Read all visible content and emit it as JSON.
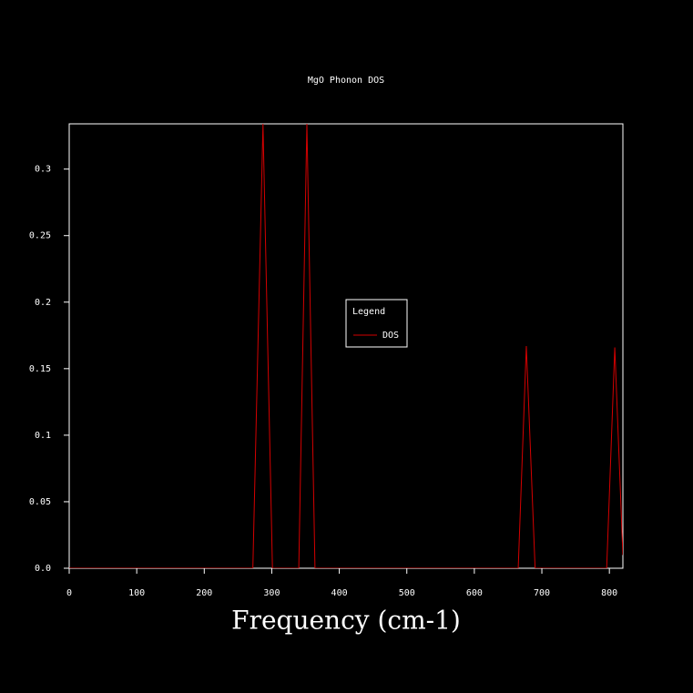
{
  "chart_data": {
    "type": "line",
    "title": "MgO Phonon DOS",
    "xlabel": "Frequency (cm-1)",
    "legend_title": "Legend",
    "x": [
      0,
      272,
      287,
      301,
      340,
      352,
      364,
      665,
      677,
      690,
      796,
      808,
      820
    ],
    "series": [
      {
        "name": "DOS",
        "color": "#d40000",
        "values": [
          0,
          0,
          0.334,
          0,
          0,
          0.334,
          0,
          0,
          0.167,
          0,
          0,
          0.166,
          0.01
        ]
      }
    ],
    "xlim": [
      0,
      820
    ],
    "xticks": [
      0,
      100,
      200,
      300,
      400,
      500,
      600,
      700,
      800
    ],
    "ylim": [
      0,
      0.334
    ],
    "yticks": [
      {
        "value": 0,
        "label": "0.0"
      },
      0.05,
      0.1,
      0.15,
      0.2,
      0.25,
      0.3
    ],
    "legend": "center"
  }
}
